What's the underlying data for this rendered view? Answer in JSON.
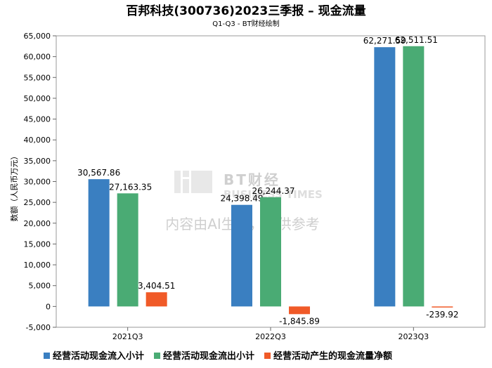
{
  "title": "百邦科技(300736)2023三季报 – 现金流量",
  "subtitle": "Q1-Q3 - BT财经绘制",
  "watermark": {
    "logo_line1": "BT财经",
    "logo_line2": "BUSINESS TIMES",
    "notice": "内容由AI生成，仅供参考"
  },
  "chart_data": {
    "type": "bar",
    "title": "百邦科技(300736)2023三季报 – 现金流量",
    "subtitle": "Q1-Q3 - BT财经绘制",
    "ylabel": "数额（人民币万元）",
    "xlabel": "",
    "categories": [
      "2021Q3",
      "2022Q3",
      "2023Q3"
    ],
    "ylim": [
      -5000,
      65000
    ],
    "yticks": [
      -5000,
      0,
      5000,
      10000,
      15000,
      20000,
      25000,
      30000,
      35000,
      40000,
      45000,
      50000,
      55000,
      60000,
      65000
    ],
    "grid": false,
    "legend_position": "bottom",
    "series": [
      {
        "name": "经营活动现金流入小计",
        "color": "#3a7fc1",
        "values": [
          30567.86,
          24398.49,
          62271.59
        ]
      },
      {
        "name": "经营活动现金流出小计",
        "color": "#4aab74",
        "values": [
          27163.35,
          26244.37,
          62511.51
        ]
      },
      {
        "name": "经营活动产生的现金流量净额",
        "color": "#f05a28",
        "values": [
          3404.51,
          -1845.89,
          -239.92
        ]
      }
    ]
  }
}
